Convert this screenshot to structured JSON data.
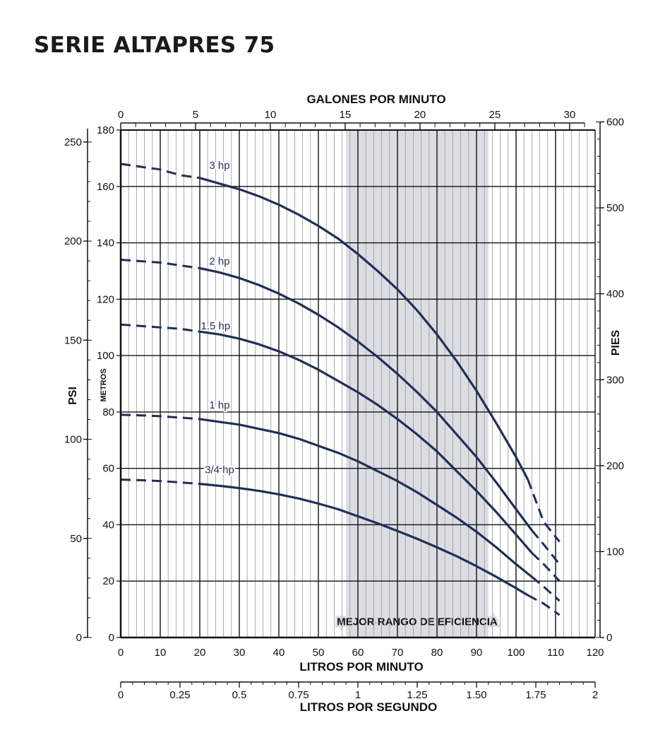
{
  "title": "SERIE ALTAPRES 75",
  "colors": {
    "curve": "#1f2f56",
    "band": "#dcdde3",
    "grid": "#111111",
    "minor_grid": "#9a9a9a"
  },
  "chart_data": {
    "type": "line",
    "title": "SERIE ALTAPRES 75",
    "x_label": "LITROS POR MINUTO",
    "x_label_top": "GALONES POR MINUTO",
    "x_label_bottom2": "LITROS POR SEGUNDO",
    "y_label_left_outer": "PSI",
    "y_label_left_inner": "METROS",
    "y_label_right": "PIES",
    "xlim": [
      0,
      120
    ],
    "ylim": [
      0,
      180
    ],
    "x_ticks": [
      "0",
      "10",
      "20",
      "30",
      "40",
      "50",
      "60",
      "70",
      "80",
      "90",
      "100",
      "110",
      "120"
    ],
    "y_ticks": [
      "0",
      "20",
      "40",
      "60",
      "80",
      "100",
      "120",
      "140",
      "160",
      "180"
    ],
    "gpm_ticks": [
      "0",
      "5",
      "10",
      "15",
      "20",
      "25",
      "30"
    ],
    "psi_ticks": [
      "0",
      "50",
      "100",
      "150",
      "200",
      "250"
    ],
    "pies_ticks": [
      "0",
      "100",
      "200",
      "300",
      "400",
      "500",
      "600"
    ],
    "lps_ticks": [
      "0",
      "0.25",
      "0.5",
      "0.75",
      "1",
      "1.25",
      "1.50",
      "1.75",
      "2"
    ],
    "efficiency_band": {
      "label": "MEJOR RANGO DE EFICIENCIA",
      "x_range": [
        57,
        93
      ]
    },
    "grid": true,
    "series": [
      {
        "name": "3 hp",
        "x": [
          0,
          5,
          10,
          15,
          20,
          25,
          30,
          35,
          40,
          45,
          50,
          55,
          60,
          65,
          70,
          75,
          80,
          85,
          90,
          95,
          100,
          103,
          107,
          111
        ],
        "y": [
          168,
          167,
          166,
          164,
          163,
          161,
          159,
          156.5,
          153.5,
          150,
          146,
          141.5,
          136,
          130,
          123.5,
          116,
          107.5,
          98,
          87.5,
          76,
          64,
          56,
          41,
          34
        ],
        "solid_range": [
          20,
          103
        ],
        "label_x": 25,
        "label_y": 164
      },
      {
        "name": "2 hp",
        "x": [
          0,
          5,
          10,
          15,
          20,
          25,
          30,
          35,
          40,
          45,
          50,
          55,
          60,
          65,
          70,
          75,
          80,
          85,
          90,
          95,
          100,
          104,
          107,
          111
        ],
        "y": [
          134,
          133.5,
          133,
          132,
          131,
          129.5,
          127.5,
          125,
          122,
          118.5,
          114.5,
          110,
          105,
          99.5,
          93.5,
          87,
          80,
          72,
          64,
          55,
          45.5,
          38,
          33,
          26
        ],
        "solid_range": [
          20,
          104
        ],
        "label_x": 25,
        "label_y": 130
      },
      {
        "name": "1.5 hp",
        "x": [
          0,
          5,
          10,
          15,
          20,
          25,
          30,
          35,
          40,
          45,
          50,
          55,
          60,
          65,
          70,
          75,
          80,
          85,
          90,
          95,
          100,
          104,
          107,
          111
        ],
        "y": [
          111,
          110.5,
          110,
          109.5,
          108.5,
          107.5,
          106,
          104,
          101.5,
          98.5,
          95,
          91,
          87,
          82.5,
          77.5,
          72,
          66,
          59,
          52,
          44.5,
          36.5,
          30,
          26,
          20
        ],
        "solid_range": [
          20,
          104
        ],
        "label_x": 24,
        "label_y": 107
      },
      {
        "name": "1 hp",
        "x": [
          0,
          5,
          10,
          15,
          20,
          25,
          30,
          35,
          40,
          45,
          50,
          55,
          60,
          65,
          70,
          75,
          80,
          85,
          90,
          95,
          100,
          104,
          107,
          111
        ],
        "y": [
          79,
          78.8,
          78.5,
          78,
          77.5,
          76.5,
          75.5,
          74,
          72.5,
          70.5,
          68,
          65.5,
          62.5,
          59,
          55.5,
          51.5,
          47,
          42.5,
          37.5,
          32,
          26,
          21.5,
          18,
          13
        ],
        "solid_range": [
          20,
          104
        ],
        "label_x": 25,
        "label_y": 79
      },
      {
        "name": "3/4 hp",
        "x": [
          0,
          5,
          10,
          15,
          20,
          25,
          30,
          35,
          40,
          45,
          50,
          55,
          60,
          65,
          70,
          75,
          80,
          85,
          90,
          95,
          100,
          103,
          107,
          111
        ],
        "y": [
          56,
          55.8,
          55.5,
          55,
          54.5,
          53.8,
          53,
          52,
          50.8,
          49.3,
          47.5,
          45.5,
          43,
          40.5,
          37.8,
          35,
          32,
          28.8,
          25.3,
          21.5,
          17.5,
          15,
          12,
          8
        ],
        "solid_range": [
          20,
          103
        ],
        "label_x": 25,
        "label_y": 56
      }
    ]
  }
}
